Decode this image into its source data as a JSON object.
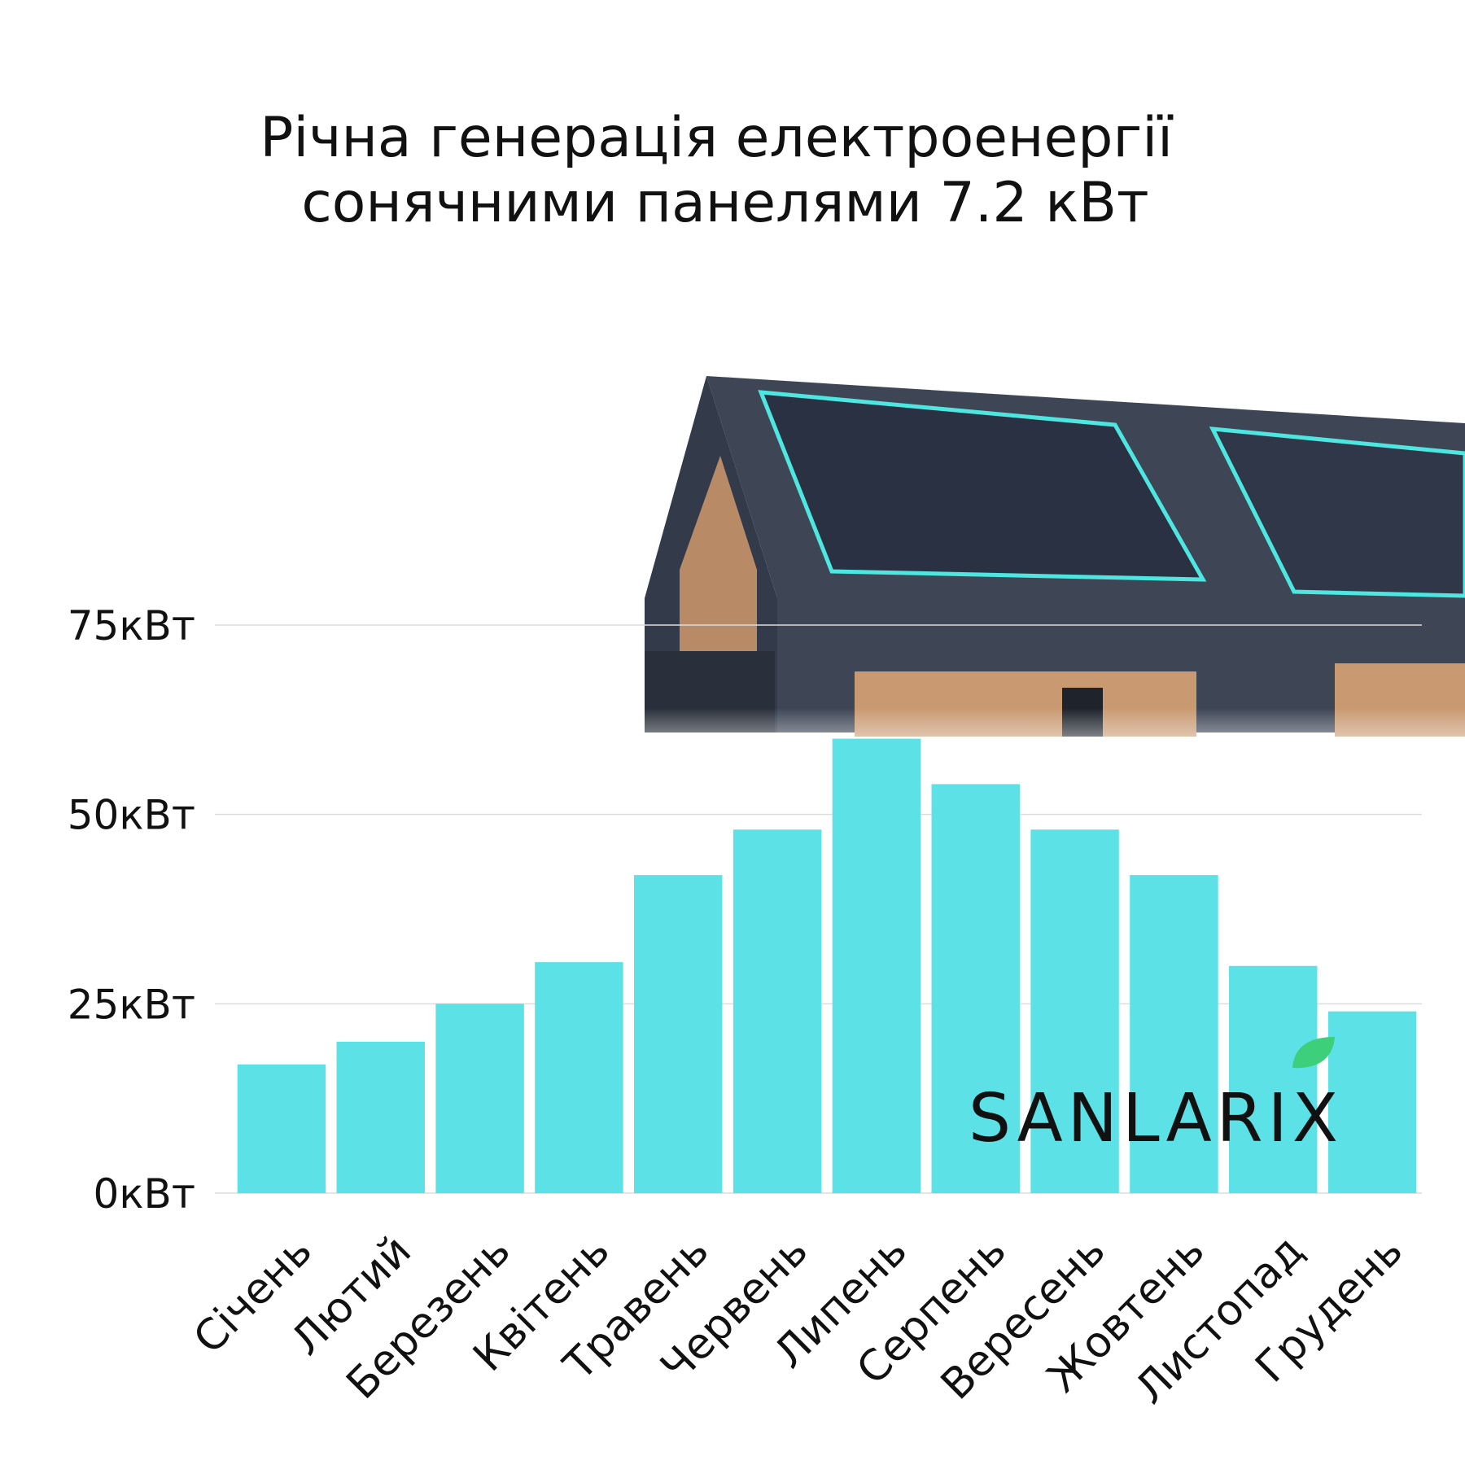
{
  "chart_data": {
    "type": "bar",
    "title": [
      "Річна генерація електроенергії",
      "сонячними панелями 7.2 кВт"
    ],
    "categories": [
      "Січень",
      "Лютий",
      "Березень",
      "Квітень",
      "Травень",
      "Червень",
      "Липень",
      "Серпень",
      "Вересень",
      "Жовтень",
      "Листопад",
      "Грудень"
    ],
    "values": [
      17,
      20,
      25,
      30.5,
      42,
      48,
      60,
      54,
      48,
      42,
      30,
      24
    ],
    "color": "#5ce1e6",
    "ylim": [
      0,
      75
    ],
    "yticks": [
      {
        "value": 0,
        "label": "0кВт"
      },
      {
        "value": 25,
        "label": "25кВт"
      },
      {
        "value": 50,
        "label": "50кВт"
      },
      {
        "value": 75,
        "label": "75кВт"
      }
    ],
    "grid": true,
    "brand": "SANLARIX"
  }
}
